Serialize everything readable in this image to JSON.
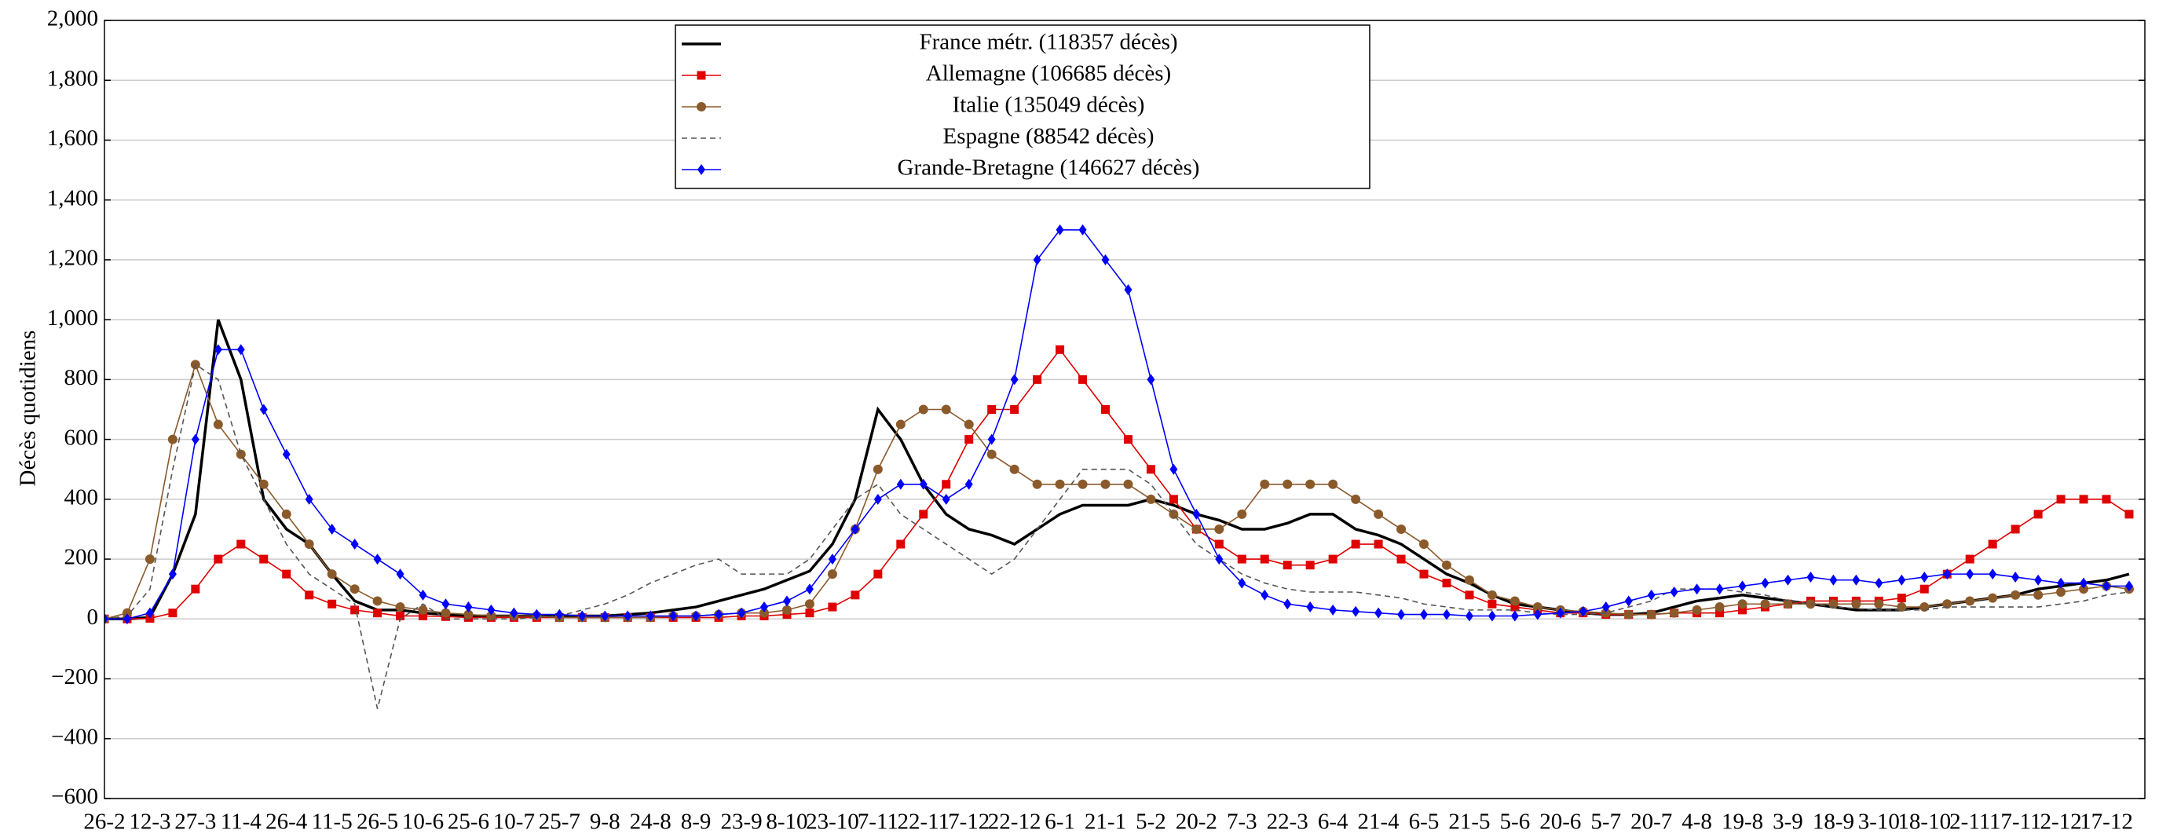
{
  "chart_data": {
    "type": "line",
    "y_label": "Décès quotidiens",
    "categories": [
      "26-2",
      null,
      "12-3",
      null,
      "27-3",
      null,
      "11-4",
      null,
      "26-4",
      null,
      "11-5",
      null,
      "26-5",
      null,
      "10-6",
      null,
      "25-6",
      null,
      "10-7",
      null,
      "25-7",
      null,
      "9-8",
      null,
      "24-8",
      null,
      "8-9",
      null,
      "23-9",
      null,
      "8-10",
      null,
      "23-10",
      null,
      "7-11",
      null,
      "22-11",
      null,
      "7-12",
      null,
      "22-12",
      null,
      "6-1",
      null,
      "21-1",
      null,
      "5-2",
      null,
      "20-2",
      null,
      "7-3",
      null,
      "22-3",
      null,
      "6-4",
      null,
      "21-4",
      null,
      "6-5",
      null,
      "21-5",
      null,
      "5-6",
      null,
      "20-6",
      null,
      "5-7",
      null,
      "20-7",
      null,
      "4-8",
      null,
      "19-8",
      null,
      "3-9",
      null,
      "18-9",
      null,
      "3-10",
      null,
      "18-10",
      null,
      "2-11",
      null,
      "17-11",
      null,
      "2-12",
      null,
      "17-12",
      null
    ],
    "series": [
      {
        "name": "France métr. (118357 décès)",
        "color": "#000000",
        "style": "solid",
        "marker": "none",
        "values": [
          0,
          0,
          5,
          150,
          350,
          1000,
          800,
          400,
          300,
          250,
          150,
          60,
          30,
          30,
          20,
          15,
          10,
          10,
          10,
          10,
          10,
          10,
          10,
          15,
          20,
          30,
          40,
          60,
          80,
          100,
          130,
          160,
          250,
          400,
          700,
          600,
          450,
          350,
          300,
          280,
          250,
          300,
          350,
          380,
          380,
          380,
          400,
          380,
          350,
          330,
          300,
          300,
          320,
          350,
          350,
          300,
          280,
          250,
          200,
          150,
          120,
          80,
          50,
          40,
          30,
          20,
          15,
          15,
          20,
          40,
          60,
          70,
          80,
          70,
          60,
          50,
          40,
          30,
          30,
          30,
          40,
          50,
          60,
          70,
          80,
          100,
          110,
          120,
          130,
          150
        ]
      },
      {
        "name": "Allemagne (106685 décès)",
        "color": "#e00000",
        "style": "solid",
        "marker": "square",
        "values": [
          0,
          0,
          2,
          20,
          100,
          200,
          250,
          200,
          150,
          80,
          50,
          30,
          20,
          10,
          10,
          8,
          5,
          5,
          5,
          5,
          5,
          5,
          5,
          5,
          5,
          5,
          5,
          5,
          10,
          10,
          15,
          20,
          40,
          80,
          150,
          250,
          350,
          450,
          600,
          700,
          700,
          800,
          900,
          800,
          700,
          600,
          500,
          400,
          300,
          250,
          200,
          200,
          180,
          180,
          200,
          250,
          250,
          200,
          150,
          120,
          80,
          50,
          40,
          30,
          20,
          20,
          15,
          15,
          15,
          20,
          20,
          20,
          30,
          40,
          50,
          60,
          60,
          60,
          60,
          70,
          100,
          150,
          200,
          250,
          300,
          350,
          400,
          400,
          400,
          350
        ]
      },
      {
        "name": "Italie (135049 décès)",
        "color": "#8b5a2b",
        "style": "solid",
        "marker": "circle",
        "values": [
          0,
          20,
          200,
          600,
          850,
          650,
          550,
          450,
          350,
          250,
          150,
          100,
          60,
          40,
          30,
          20,
          15,
          10,
          10,
          10,
          5,
          5,
          5,
          5,
          5,
          10,
          10,
          15,
          20,
          20,
          30,
          50,
          150,
          300,
          500,
          650,
          700,
          700,
          650,
          550,
          500,
          450,
          450,
          450,
          450,
          450,
          400,
          350,
          300,
          300,
          350,
          450,
          450,
          450,
          450,
          400,
          350,
          300,
          250,
          180,
          130,
          80,
          60,
          40,
          30,
          25,
          20,
          15,
          15,
          20,
          30,
          40,
          50,
          50,
          50,
          50,
          50,
          50,
          50,
          40,
          40,
          50,
          60,
          70,
          80,
          80,
          90,
          100,
          110,
          100
        ]
      },
      {
        "name": "Espagne (88542 décès)",
        "color": "#555555",
        "style": "dashed",
        "marker": "none",
        "values": [
          0,
          10,
          100,
          500,
          850,
          800,
          550,
          400,
          250,
          150,
          100,
          50,
          -300,
          0,
          50,
          0,
          0,
          0,
          0,
          5,
          10,
          30,
          50,
          80,
          120,
          150,
          180,
          200,
          150,
          150,
          150,
          200,
          300,
          400,
          450,
          350,
          300,
          250,
          200,
          150,
          200,
          300,
          400,
          500,
          500,
          500,
          450,
          350,
          250,
          200,
          150,
          120,
          100,
          90,
          90,
          90,
          80,
          70,
          50,
          40,
          30,
          30,
          30,
          20,
          15,
          15,
          20,
          40,
          60,
          100,
          100,
          100,
          90,
          80,
          60,
          50,
          40,
          35,
          30,
          30,
          30,
          40,
          40,
          40,
          40,
          40,
          50,
          60,
          80,
          90
        ]
      },
      {
        "name": "Grande-Bretagne (146627 décès)",
        "color": "#0000ff",
        "style": "solid",
        "marker": "diamond",
        "values": [
          0,
          0,
          20,
          150,
          600,
          900,
          900,
          700,
          550,
          400,
          300,
          250,
          200,
          150,
          80,
          50,
          40,
          30,
          20,
          15,
          15,
          10,
          10,
          10,
          10,
          10,
          10,
          15,
          20,
          40,
          60,
          100,
          200,
          300,
          400,
          450,
          450,
          400,
          450,
          600,
          800,
          1200,
          1300,
          1300,
          1200,
          1100,
          800,
          500,
          350,
          200,
          120,
          80,
          50,
          40,
          30,
          25,
          20,
          15,
          15,
          15,
          10,
          10,
          10,
          15,
          20,
          25,
          40,
          60,
          80,
          90,
          100,
          100,
          110,
          120,
          130,
          140,
          130,
          130,
          120,
          130,
          140,
          150,
          150,
          150,
          140,
          130,
          120,
          120,
          110,
          110
        ]
      }
    ],
    "ylim": [
      -600,
      2000
    ],
    "yticks": [
      {
        "value": -600,
        "label": "−600"
      },
      {
        "value": -400,
        "label": "−400"
      },
      {
        "value": -200,
        "label": "−200"
      },
      0,
      200,
      400,
      600,
      800,
      {
        "value": 1000,
        "label": "1,000"
      },
      {
        "value": 1200,
        "label": "1,200"
      },
      {
        "value": 1400,
        "label": "1,400"
      },
      {
        "value": 1600,
        "label": "1,600"
      },
      {
        "value": 1800,
        "label": "1,800"
      },
      {
        "value": 2000,
        "label": "2,000"
      }
    ],
    "grid": true,
    "legend": "upper center"
  }
}
